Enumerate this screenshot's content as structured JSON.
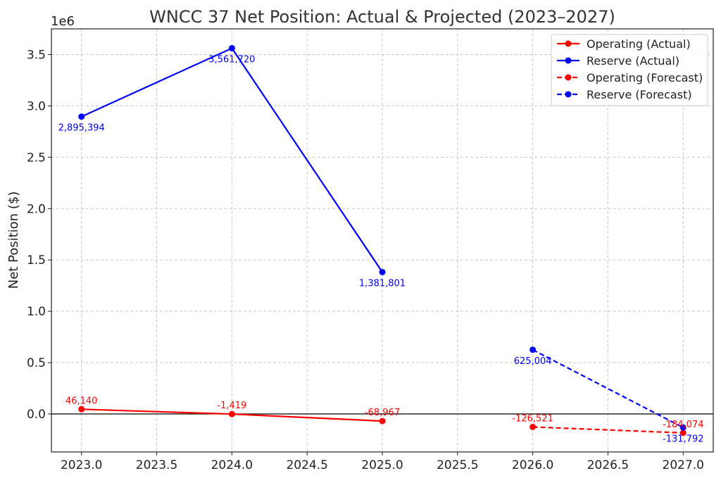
{
  "chart_data": {
    "type": "line",
    "title": "WNCC 37 Net Position: Actual & Projected (2023–2027)",
    "xlabel": "",
    "ylabel": "Net Position ($)",
    "y_offset_label": "1e6",
    "xlim": [
      2022.8,
      2027.2
    ],
    "ylim": [
      -370000,
      3750000
    ],
    "x_ticks": [
      2023.0,
      2023.5,
      2024.0,
      2024.5,
      2025.0,
      2025.5,
      2026.0,
      2026.5,
      2027.0
    ],
    "x_tick_labels": [
      "2023.0",
      "2023.5",
      "2024.0",
      "2024.5",
      "2025.0",
      "2025.5",
      "2026.0",
      "2026.5",
      "2027.0"
    ],
    "y_ticks": [
      0,
      500000,
      1000000,
      1500000,
      2000000,
      2500000,
      3000000,
      3500000
    ],
    "y_tick_labels": [
      "0.0",
      "0.5",
      "1.0",
      "1.5",
      "2.0",
      "2.5",
      "3.0",
      "3.5"
    ],
    "grid": true,
    "zero_line": true,
    "legend_position": "top-right",
    "series": [
      {
        "name": "Operating (Actual)",
        "color": "#ff0000",
        "dashed": false,
        "x": [
          2023,
          2024,
          2025
        ],
        "y": [
          46140,
          -1419,
          -68967
        ],
        "labels": [
          "46,140",
          "-1,419",
          "-68,967"
        ],
        "label_pos": [
          "above",
          "above",
          "above"
        ]
      },
      {
        "name": "Reserve (Actual)",
        "color": "#0000ff",
        "dashed": false,
        "x": [
          2023,
          2024,
          2025
        ],
        "y": [
          2895394,
          3561720,
          1381801
        ],
        "labels": [
          "2,895,394",
          "3,561,720",
          "1,381,801"
        ],
        "label_pos": [
          "below",
          "below",
          "below"
        ]
      },
      {
        "name": "Operating (Forecast)",
        "color": "#ff0000",
        "dashed": true,
        "x": [
          2026,
          2027
        ],
        "y": [
          -126521,
          -184074
        ],
        "labels": [
          "-126,521",
          "-184,074"
        ],
        "label_pos": [
          "above",
          "above"
        ]
      },
      {
        "name": "Reserve (Forecast)",
        "color": "#0000ff",
        "dashed": true,
        "x": [
          2026,
          2027
        ],
        "y": [
          625004,
          -131792
        ],
        "labels": [
          "625,004",
          "-131,792"
        ],
        "label_pos": [
          "below",
          "below"
        ]
      }
    ]
  }
}
